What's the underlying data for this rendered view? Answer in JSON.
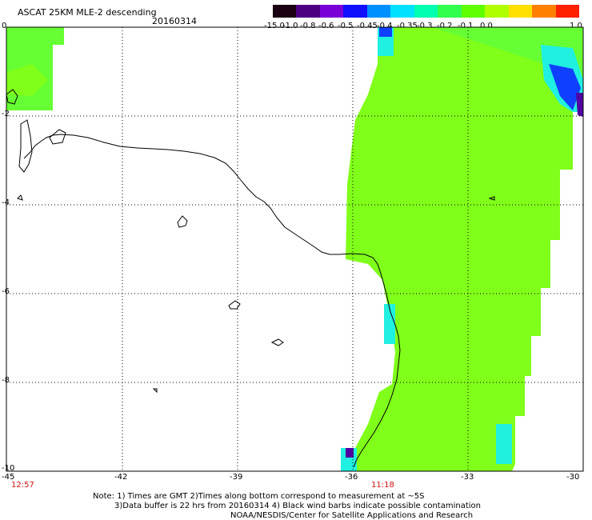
{
  "header": {
    "title": "ASCAT 25KM MLE-2 descending",
    "date": "20160314"
  },
  "legend": {
    "labels": [
      "-15.0",
      "-1.0",
      "-0.8",
      "-0.6",
      "-0.5",
      "-0.45",
      "-0.4",
      "-0.35",
      "-0.3",
      "-0.2",
      "-0.1",
      "0.0",
      "1.0"
    ],
    "colors": [
      "#1a0010",
      "#4b0082",
      "#7a00d8",
      "#1010ff",
      "#0090ff",
      "#00e0ff",
      "#00ffb0",
      "#30ff50",
      "#60ff00",
      "#b0ff00",
      "#ffe000",
      "#ff8000",
      "#ff2000"
    ]
  },
  "map": {
    "lat_labels": [
      "0",
      "-2",
      "-4",
      "-6",
      "-8",
      "-10"
    ],
    "lon_labels": [
      "-45",
      "-42",
      "-39",
      "-36",
      "-33",
      "-30"
    ],
    "time_left": "12:57",
    "time_right": "11:18",
    "colors": {
      "field": "#80ff1a",
      "field2": "#66ff33",
      "cyan": "#20f0e0",
      "blue": "#1040ff",
      "purple": "#5000a0",
      "coast": "#000000",
      "grid": "#000000"
    }
  },
  "footer": {
    "line1": "Note: 1) Times are GMT 2)Times along bottom correspond to measurement at ~5S",
    "line2": "3)Data buffer is 22 hrs from 20160314 4) Black wind barbs indicate possible contamination",
    "line3": "NOAA/NESDIS/Center for Satellite Applications and Research"
  }
}
